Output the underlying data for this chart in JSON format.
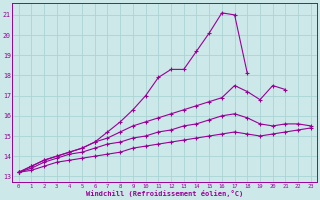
{
  "background_color": "#cce8e8",
  "grid_color": "#aad4d4",
  "line_color": "#990099",
  "xlabel": "Windchill (Refroidissement éolien,°C)",
  "yticks": [
    13,
    14,
    15,
    16,
    17,
    18,
    19,
    20,
    21
  ],
  "xtick_labels": [
    "0",
    "1",
    "2",
    "3",
    "4",
    "5",
    "6",
    "7",
    "8",
    "9",
    "10",
    "11",
    "12",
    "13",
    "14",
    "15",
    "16",
    "17",
    "18",
    "19",
    "20",
    "21",
    "22",
    "23"
  ],
  "xlim": [
    -0.5,
    23.5
  ],
  "ylim": [
    12.7,
    21.6
  ],
  "curves": [
    {
      "x": [
        0,
        1,
        2,
        3,
        4,
        5,
        6,
        7,
        8,
        9,
        10,
        11,
        12,
        13,
        14,
        15,
        16,
        17,
        18
      ],
      "y": [
        13.2,
        13.5,
        13.8,
        14.0,
        14.2,
        14.4,
        14.7,
        15.2,
        15.7,
        16.3,
        17.0,
        17.9,
        18.3,
        18.3,
        19.2,
        20.1,
        21.1,
        21.0,
        18.1
      ]
    },
    {
      "x": [
        0,
        1,
        2,
        3,
        4,
        5,
        6,
        7,
        8,
        9,
        10,
        11,
        12,
        13,
        14,
        15,
        16,
        17,
        18,
        19,
        20,
        21
      ],
      "y": [
        13.2,
        13.5,
        13.8,
        14.0,
        14.2,
        14.4,
        14.7,
        14.9,
        15.2,
        15.5,
        15.7,
        15.9,
        16.1,
        16.3,
        16.5,
        16.7,
        16.9,
        17.5,
        17.2,
        16.8,
        17.5,
        17.3
      ]
    },
    {
      "x": [
        0,
        1,
        2,
        3,
        4,
        5,
        6,
        7,
        8,
        9,
        10,
        11,
        12,
        13,
        14,
        15,
        16,
        17,
        18,
        19,
        20,
        21,
        22,
        23
      ],
      "y": [
        13.2,
        13.4,
        13.7,
        13.9,
        14.1,
        14.2,
        14.4,
        14.6,
        14.7,
        14.9,
        15.0,
        15.2,
        15.3,
        15.5,
        15.6,
        15.8,
        16.0,
        16.1,
        15.9,
        15.6,
        15.5,
        15.6,
        15.6,
        15.5
      ]
    },
    {
      "x": [
        0,
        1,
        2,
        3,
        4,
        5,
        6,
        7,
        8,
        9,
        10,
        11,
        12,
        13,
        14,
        15,
        16,
        17,
        18,
        19,
        20,
        21,
        22,
        23
      ],
      "y": [
        13.2,
        13.3,
        13.5,
        13.7,
        13.8,
        13.9,
        14.0,
        14.1,
        14.2,
        14.4,
        14.5,
        14.6,
        14.7,
        14.8,
        14.9,
        15.0,
        15.1,
        15.2,
        15.1,
        15.0,
        15.1,
        15.2,
        15.3,
        15.4
      ]
    }
  ]
}
